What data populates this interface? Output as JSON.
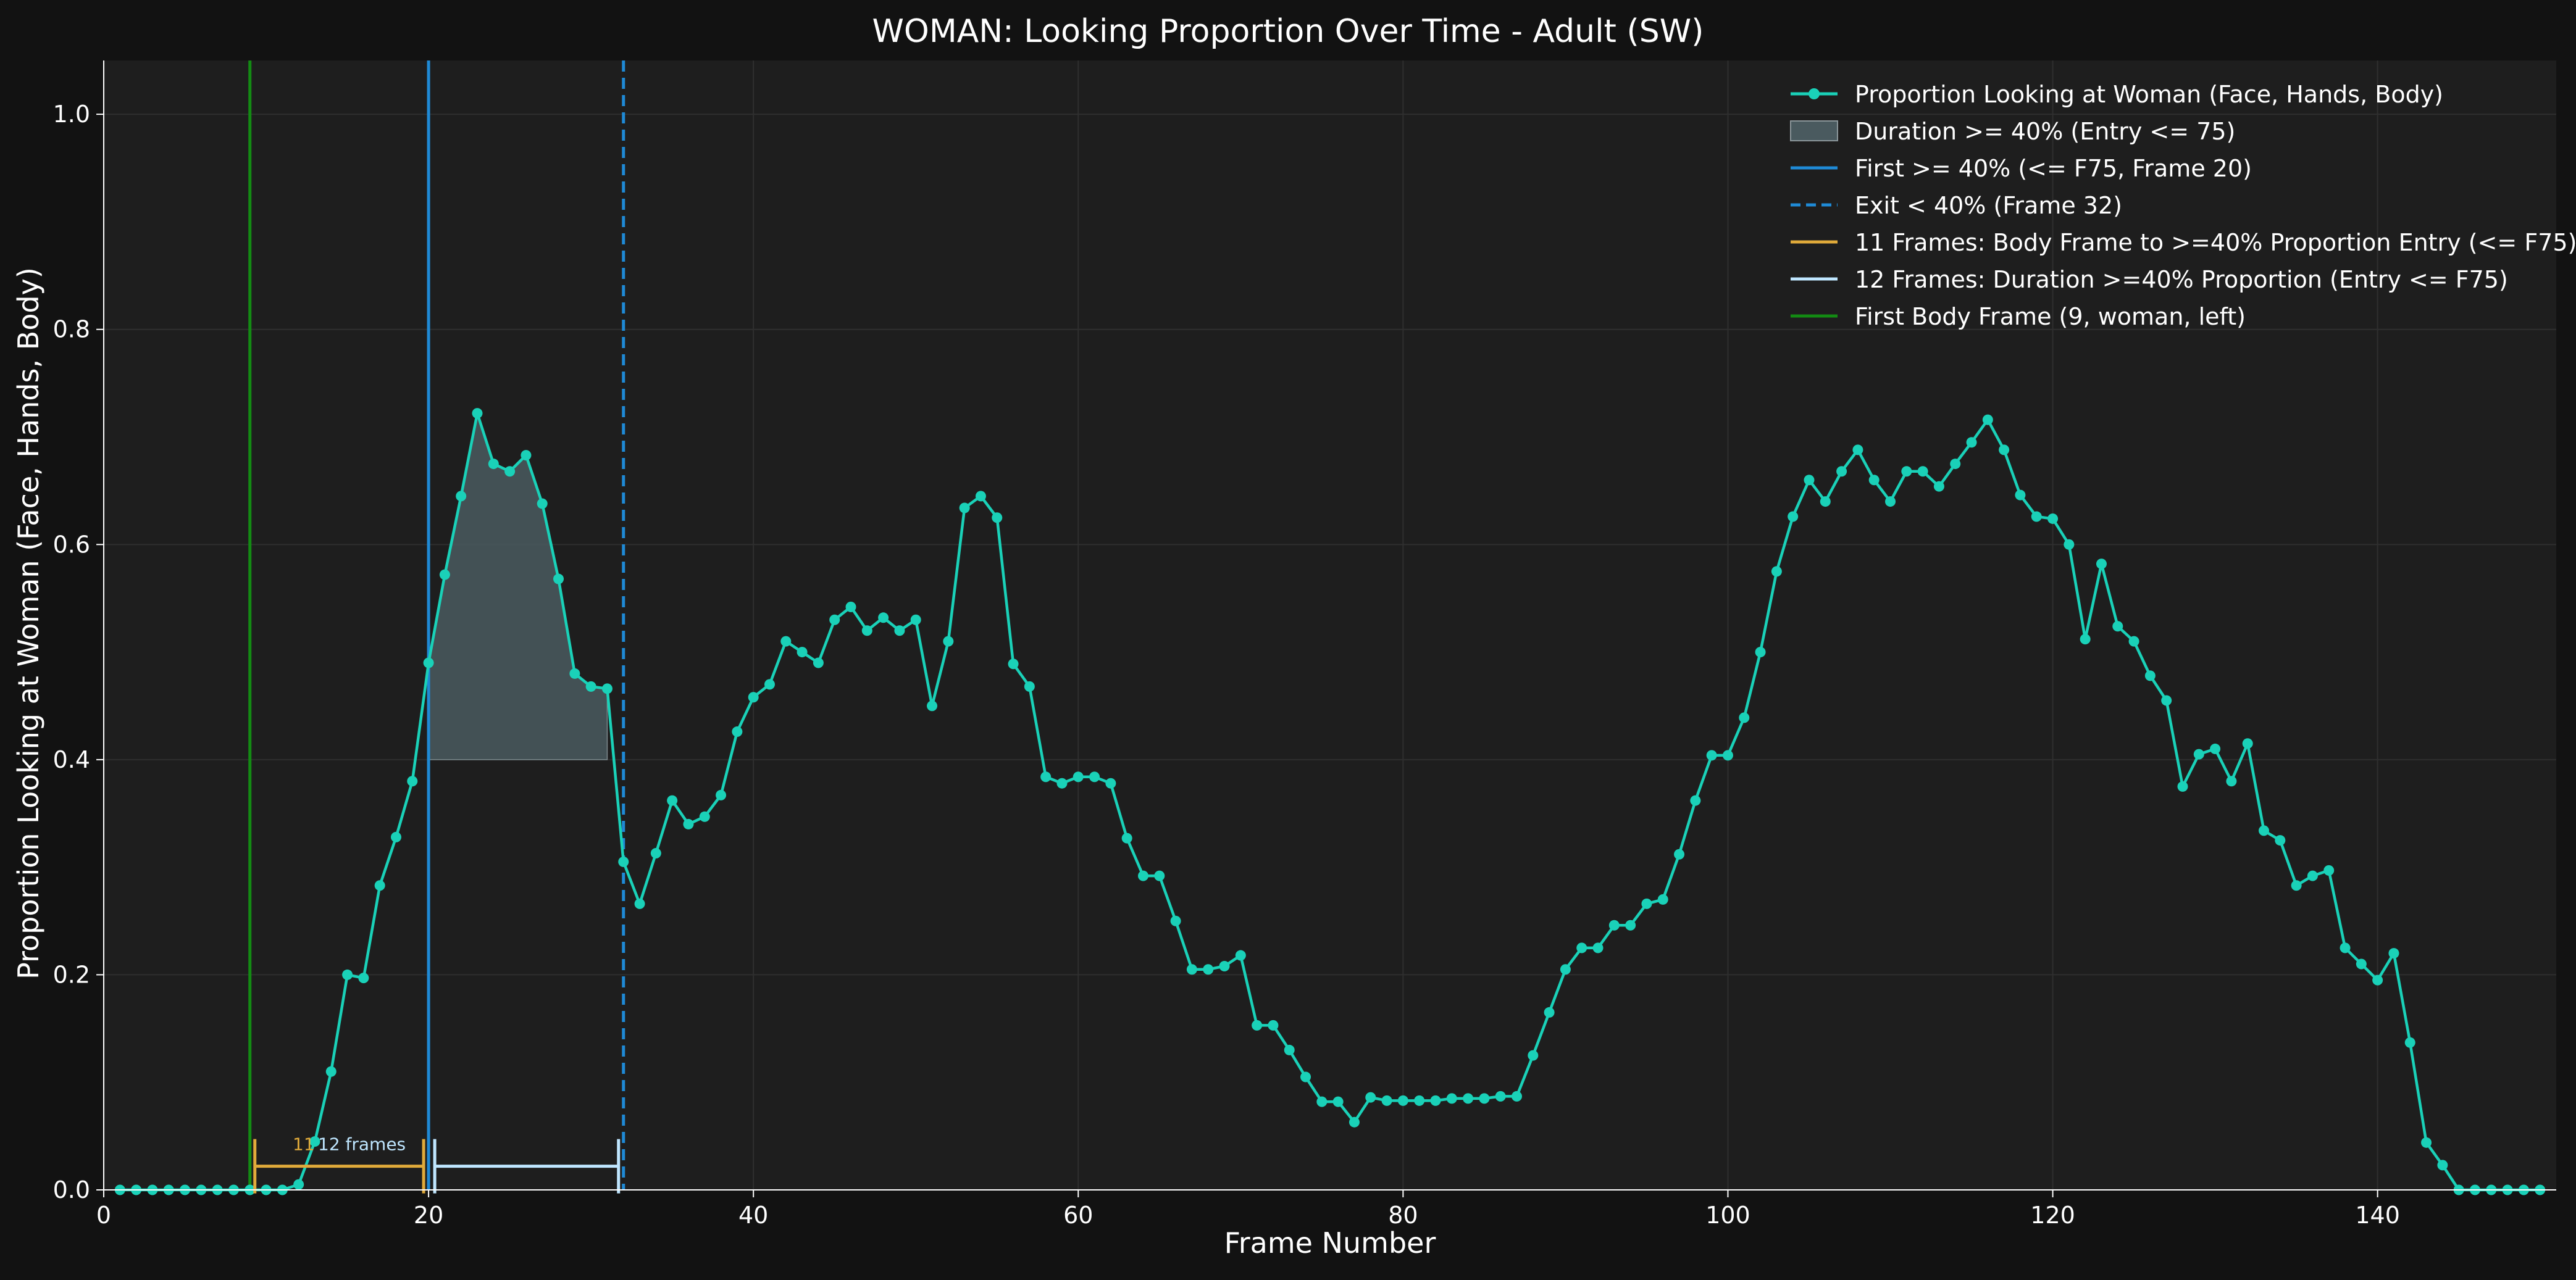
{
  "chart_data": {
    "type": "line",
    "title": "WOMAN: Looking Proportion Over Time - Adult (SW)",
    "xlabel": "Frame Number",
    "ylabel": "Proportion Looking at Woman (Face, Hands, Body)",
    "xlim": [
      0,
      151
    ],
    "ylim": [
      0,
      1.05
    ],
    "x_ticks": [
      0,
      20,
      40,
      60,
      80,
      100,
      120,
      140
    ],
    "y_ticks": [
      0.0,
      0.2,
      0.4,
      0.6,
      0.8,
      1.0
    ],
    "grid": true,
    "legend_position": "top-right",
    "series": [
      {
        "name": "Proportion Looking at Woman (Face, Hands, Body)",
        "color": "#1ad1b8",
        "x_start": 1,
        "values": [
          0,
          0,
          0,
          0,
          0,
          0,
          0,
          0,
          0,
          0,
          0,
          0.005,
          0.045,
          0.11,
          0.2,
          0.197,
          0.283,
          0.328,
          0.38,
          0.49,
          0.572,
          0.645,
          0.722,
          0.675,
          0.668,
          0.683,
          0.638,
          0.568,
          0.48,
          0.468,
          0.466,
          0.305,
          0.266,
          0.313,
          0.362,
          0.34,
          0.347,
          0.367,
          0.426,
          0.458,
          0.47,
          0.51,
          0.5,
          0.49,
          0.53,
          0.542,
          0.52,
          0.532,
          0.52,
          0.53,
          0.45,
          0.51,
          0.634,
          0.645,
          0.625,
          0.489,
          0.468,
          0.384,
          0.378,
          0.384,
          0.384,
          0.378,
          0.327,
          0.292,
          0.292,
          0.25,
          0.205,
          0.205,
          0.208,
          0.218,
          0.153,
          0.153,
          0.13,
          0.105,
          0.082,
          0.082,
          0.063,
          0.086,
          0.083,
          0.083,
          0.083,
          0.083,
          0.085,
          0.085,
          0.085,
          0.087,
          0.087,
          0.125,
          0.165,
          0.205,
          0.225,
          0.225,
          0.246,
          0.246,
          0.266,
          0.27,
          0.312,
          0.362,
          0.404,
          0.404,
          0.439,
          0.5,
          0.575,
          0.626,
          0.66,
          0.64,
          0.668,
          0.688,
          0.66,
          0.64,
          0.668,
          0.668,
          0.654,
          0.675,
          0.695,
          0.716,
          0.688,
          0.646,
          0.626,
          0.624,
          0.6,
          0.512,
          0.582,
          0.524,
          0.51,
          0.478,
          0.455,
          0.375,
          0.405,
          0.41,
          0.38,
          0.415,
          0.334,
          0.325,
          0.283,
          0.292,
          0.297,
          0.225,
          0.21,
          0.195,
          0.22,
          0.137,
          0.044,
          0.023,
          0,
          0,
          0,
          0,
          0,
          0
        ]
      }
    ],
    "fill_region": {
      "name": "Duration >= 40% (Entry <= 75)",
      "x_from": 20,
      "x_to": 31,
      "baseline": 0.4,
      "color": "#4a5a5f"
    },
    "vertical_lines": [
      {
        "name": "First >= 40% (<= F75, Frame 20)",
        "x": 20,
        "color": "#1f8ad6",
        "style": "solid"
      },
      {
        "name": "Exit < 40% (Frame 32)",
        "x": 32,
        "color": "#1f8ad6",
        "style": "dashed"
      },
      {
        "name": "First Body Frame (9, woman, left)",
        "x": 9,
        "color": "#138a13",
        "style": "solid"
      }
    ],
    "brackets": [
      {
        "name": "11 Frames: Body Frame to >=40% Proportion Entry (<= F75)",
        "x_from": 9,
        "x_to": 20,
        "y": 0.022,
        "color": "#e0aa3a",
        "label": "11"
      },
      {
        "name": "12 Frames: Duration >=40% Proportion (Entry <= F75)",
        "x_from": 20,
        "x_to": 32,
        "y": 0.022,
        "color": "#bfe6ff",
        "label": "12 frames"
      }
    ],
    "legend": [
      {
        "label": "Proportion Looking at Woman (Face, Hands, Body)",
        "kind": "line-marker",
        "color": "#1ad1b8"
      },
      {
        "label": "Duration >= 40% (Entry <= 75)",
        "kind": "patch",
        "color": "#4a5a5f"
      },
      {
        "label": "First >= 40% (<= F75, Frame 20)",
        "kind": "line",
        "color": "#1f8ad6"
      },
      {
        "label": "Exit < 40% (Frame 32)",
        "kind": "dashed",
        "color": "#1f8ad6"
      },
      {
        "label": "11 Frames: Body Frame to >=40% Proportion Entry (<= F75)",
        "kind": "line",
        "color": "#e0aa3a"
      },
      {
        "label": "12 Frames: Duration >=40% Proportion (Entry <= F75)",
        "kind": "line",
        "color": "#bfe6ff"
      },
      {
        "label": "First Body Frame (9, woman, left)",
        "kind": "line",
        "color": "#138a13"
      }
    ]
  }
}
